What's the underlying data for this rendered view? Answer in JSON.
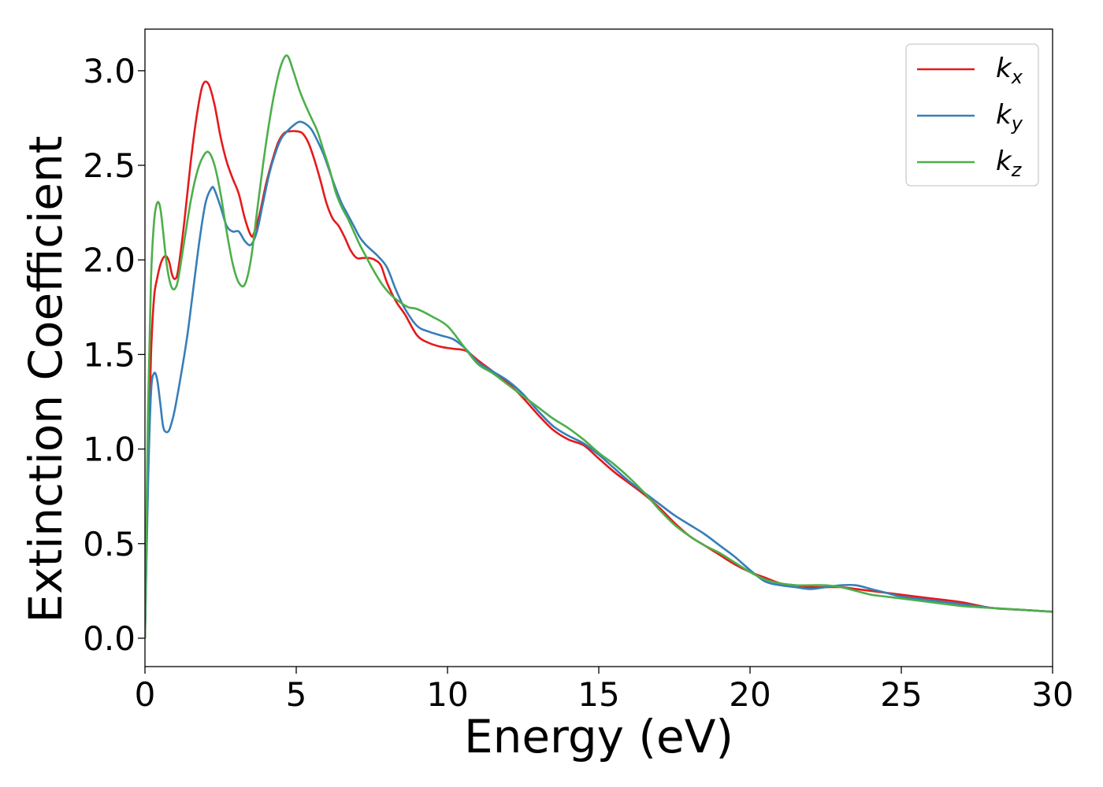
{
  "chart_data": {
    "type": "line",
    "title": "",
    "xlabel": "Energy (eV)",
    "ylabel": "Extinction Coefficient",
    "xlim": [
      0,
      30
    ],
    "ylim": [
      -0.15,
      3.22
    ],
    "xticks": [
      0,
      5,
      10,
      15,
      20,
      25,
      30
    ],
    "xtick_labels": [
      "0",
      "5",
      "10",
      "15",
      "20",
      "25",
      "30"
    ],
    "yticks": [
      0.0,
      0.5,
      1.0,
      1.5,
      2.0,
      2.5,
      3.0
    ],
    "ytick_labels": [
      "0.0",
      "0.5",
      "1.0",
      "1.5",
      "2.0",
      "2.5",
      "3.0"
    ],
    "grid": false,
    "legend_position": "top-right",
    "series": [
      {
        "name": "k",
        "subscript": "x",
        "color": "#e41a1c",
        "x": [
          0,
          0.1,
          0.2,
          0.3,
          0.4,
          0.5,
          0.6,
          0.7,
          0.8,
          0.9,
          1.0,
          1.1,
          1.3,
          1.5,
          1.7,
          1.9,
          2.1,
          2.3,
          2.5,
          2.7,
          2.9,
          3.1,
          3.3,
          3.5,
          3.6,
          3.8,
          4.0,
          4.2,
          4.4,
          4.6,
          4.8,
          5.0,
          5.2,
          5.4,
          5.6,
          5.8,
          6.0,
          6.2,
          6.4,
          6.6,
          6.8,
          7.0,
          7.2,
          7.4,
          7.6,
          7.8,
          8.0,
          8.3,
          8.6,
          9.0,
          9.4,
          9.8,
          10.2,
          10.6,
          11.0,
          11.5,
          12.0,
          12.5,
          13.0,
          13.5,
          14.0,
          14.5,
          15.0,
          15.5,
          16.0,
          16.5,
          17.0,
          17.5,
          18.0,
          18.5,
          19.0,
          19.5,
          20.0,
          20.5,
          21.0,
          21.5,
          22.0,
          22.5,
          23.0,
          23.5,
          24.0,
          24.5,
          25.0,
          26.0,
          27.0,
          28.0,
          29.0,
          30.0
        ],
        "y": [
          0.0,
          0.9,
          1.5,
          1.8,
          1.9,
          1.97,
          2.01,
          2.02,
          1.99,
          1.92,
          1.9,
          1.95,
          2.2,
          2.5,
          2.75,
          2.92,
          2.93,
          2.82,
          2.65,
          2.52,
          2.43,
          2.35,
          2.22,
          2.13,
          2.14,
          2.25,
          2.4,
          2.52,
          2.62,
          2.67,
          2.68,
          2.68,
          2.67,
          2.62,
          2.53,
          2.42,
          2.3,
          2.22,
          2.18,
          2.12,
          2.05,
          2.01,
          2.01,
          2.01,
          2.0,
          1.97,
          1.88,
          1.78,
          1.71,
          1.6,
          1.56,
          1.54,
          1.53,
          1.52,
          1.47,
          1.41,
          1.35,
          1.27,
          1.18,
          1.1,
          1.05,
          1.02,
          0.95,
          0.88,
          0.82,
          0.76,
          0.69,
          0.61,
          0.54,
          0.49,
          0.44,
          0.39,
          0.35,
          0.32,
          0.29,
          0.28,
          0.27,
          0.27,
          0.27,
          0.26,
          0.25,
          0.24,
          0.23,
          0.21,
          0.19,
          0.16,
          0.15,
          0.14
        ]
      },
      {
        "name": "k",
        "subscript": "y",
        "color": "#377eb8",
        "x": [
          0,
          0.1,
          0.2,
          0.3,
          0.4,
          0.5,
          0.6,
          0.7,
          0.8,
          0.9,
          1.0,
          1.2,
          1.4,
          1.6,
          1.8,
          2.0,
          2.2,
          2.3,
          2.5,
          2.7,
          2.9,
          3.1,
          3.3,
          3.5,
          3.7,
          3.9,
          4.1,
          4.3,
          4.5,
          4.7,
          4.9,
          5.1,
          5.3,
          5.5,
          5.7,
          5.9,
          6.1,
          6.3,
          6.5,
          6.7,
          6.9,
          7.1,
          7.3,
          7.5,
          7.7,
          8.0,
          8.3,
          8.6,
          9.0,
          9.4,
          9.8,
          10.2,
          10.6,
          11.0,
          11.5,
          12.0,
          12.5,
          13.0,
          13.5,
          14.0,
          14.5,
          15.0,
          15.5,
          16.0,
          16.5,
          17.0,
          17.5,
          18.0,
          18.5,
          19.0,
          19.5,
          20.0,
          20.5,
          21.0,
          21.5,
          22.0,
          22.5,
          23.0,
          23.5,
          24.0,
          24.5,
          25.0,
          26.0,
          27.0,
          28.0,
          29.0,
          30.0
        ],
        "y": [
          0.0,
          0.8,
          1.3,
          1.4,
          1.37,
          1.25,
          1.12,
          1.09,
          1.1,
          1.15,
          1.22,
          1.4,
          1.6,
          1.85,
          2.1,
          2.3,
          2.38,
          2.37,
          2.28,
          2.18,
          2.15,
          2.15,
          2.1,
          2.08,
          2.15,
          2.3,
          2.45,
          2.56,
          2.64,
          2.68,
          2.71,
          2.73,
          2.72,
          2.69,
          2.63,
          2.56,
          2.47,
          2.38,
          2.3,
          2.24,
          2.18,
          2.12,
          2.08,
          2.05,
          2.02,
          1.96,
          1.84,
          1.74,
          1.65,
          1.62,
          1.6,
          1.58,
          1.53,
          1.46,
          1.41,
          1.36,
          1.29,
          1.2,
          1.12,
          1.07,
          1.03,
          0.97,
          0.9,
          0.83,
          0.77,
          0.71,
          0.65,
          0.6,
          0.55,
          0.49,
          0.43,
          0.36,
          0.3,
          0.28,
          0.27,
          0.26,
          0.27,
          0.28,
          0.28,
          0.26,
          0.24,
          0.22,
          0.2,
          0.18,
          0.16,
          0.15,
          0.14
        ]
      },
      {
        "name": "k",
        "subscript": "z",
        "color": "#4daf4a",
        "x": [
          0,
          0.1,
          0.2,
          0.3,
          0.4,
          0.5,
          0.6,
          0.7,
          0.8,
          0.9,
          1.0,
          1.1,
          1.3,
          1.5,
          1.7,
          1.9,
          2.1,
          2.3,
          2.5,
          2.7,
          2.9,
          3.1,
          3.3,
          3.5,
          3.7,
          3.9,
          4.1,
          4.3,
          4.5,
          4.7,
          4.9,
          5.1,
          5.3,
          5.5,
          5.7,
          5.9,
          6.1,
          6.3,
          6.5,
          6.7,
          6.9,
          7.1,
          7.3,
          7.5,
          7.8,
          8.1,
          8.4,
          8.7,
          9.0,
          9.5,
          10.0,
          10.5,
          11.0,
          11.5,
          12.0,
          12.5,
          13.0,
          13.5,
          14.0,
          14.5,
          15.0,
          15.5,
          16.0,
          16.5,
          17.0,
          17.5,
          18.0,
          18.5,
          19.0,
          19.5,
          20.0,
          20.5,
          21.0,
          21.5,
          22.0,
          22.5,
          23.0,
          23.5,
          24.0,
          24.5,
          25.0,
          26.0,
          27.0,
          28.0,
          29.0,
          30.0
        ],
        "y": [
          0.0,
          1.2,
          1.9,
          2.2,
          2.3,
          2.28,
          2.15,
          2.0,
          1.9,
          1.85,
          1.85,
          1.9,
          2.1,
          2.3,
          2.45,
          2.54,
          2.57,
          2.5,
          2.35,
          2.15,
          1.98,
          1.88,
          1.87,
          2.0,
          2.25,
          2.5,
          2.72,
          2.9,
          3.03,
          3.08,
          3.0,
          2.9,
          2.82,
          2.75,
          2.68,
          2.58,
          2.48,
          2.36,
          2.28,
          2.22,
          2.15,
          2.08,
          2.02,
          1.96,
          1.88,
          1.82,
          1.78,
          1.75,
          1.74,
          1.7,
          1.65,
          1.55,
          1.45,
          1.4,
          1.34,
          1.28,
          1.22,
          1.16,
          1.11,
          1.05,
          0.98,
          0.92,
          0.85,
          0.77,
          0.68,
          0.6,
          0.54,
          0.49,
          0.45,
          0.4,
          0.35,
          0.31,
          0.29,
          0.28,
          0.28,
          0.28,
          0.27,
          0.25,
          0.23,
          0.22,
          0.21,
          0.19,
          0.17,
          0.16,
          0.15,
          0.14
        ]
      }
    ]
  }
}
